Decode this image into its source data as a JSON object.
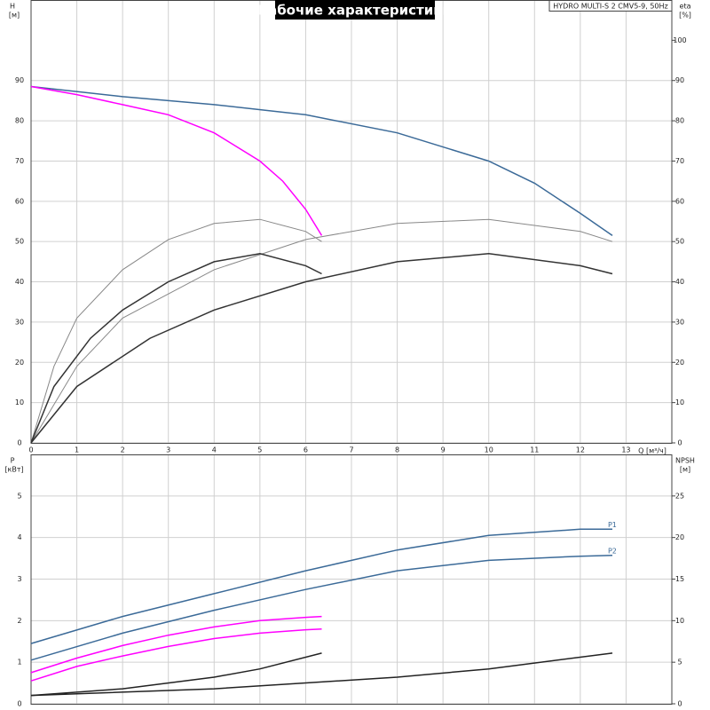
{
  "chart_data": [
    {
      "type": "line",
      "title": "Рабочие характеристики",
      "model": "HYDRO MULTI-S 2 CMV5-9, 50Hz",
      "x_label": "Q [м³/ч]",
      "y_label": "H",
      "y_unit": "[м]",
      "y2_label": "eta",
      "y2_unit": "[%]",
      "xlim": [
        0,
        14
      ],
      "xticks": [
        0,
        1,
        2,
        3,
        4,
        5,
        6,
        7,
        8,
        9,
        10,
        11,
        12,
        13
      ],
      "ylim": [
        0,
        110
      ],
      "yticks": [
        0,
        10,
        20,
        30,
        40,
        50,
        60,
        70,
        80,
        90
      ],
      "y2lim": [
        0,
        110
      ],
      "y2ticks": [
        0,
        10,
        20,
        30,
        40,
        50,
        60,
        70,
        80,
        90,
        100
      ],
      "grid": true,
      "series": [
        {
          "color": "#3b6a98",
          "x": [
            0,
            2,
            4,
            6,
            8,
            10,
            11,
            12,
            12.7
          ],
          "values": [
            88.5,
            86,
            84,
            81.5,
            77,
            70,
            64.5,
            57,
            51.5
          ]
        },
        {
          "color": "#ff00ff",
          "x": [
            0,
            1,
            2,
            3,
            4,
            5,
            5.5,
            6,
            6.35
          ],
          "values": [
            88.5,
            86.5,
            84,
            81.5,
            77,
            70,
            65,
            58,
            51.5
          ]
        },
        {
          "color": "#888888",
          "axis": "y2",
          "x": [
            0,
            0.5,
            1,
            2,
            3,
            4,
            5,
            6,
            6.35
          ],
          "values": [
            0,
            19,
            31,
            43,
            50.5,
            54.5,
            55.5,
            52.5,
            50
          ]
        },
        {
          "color": "#888888",
          "axis": "y2",
          "x": [
            0,
            1,
            2,
            4,
            6,
            8,
            10,
            12,
            12.7
          ],
          "values": [
            0,
            19,
            31,
            43,
            50.5,
            54.5,
            55.5,
            52.5,
            50
          ]
        },
        {
          "color": "#333333",
          "axis": "y2",
          "x": [
            0,
            0.5,
            1.3,
            2,
            3,
            4,
            5,
            6,
            6.35
          ],
          "values": [
            0,
            14,
            26,
            33,
            40,
            45,
            47,
            44,
            42
          ]
        },
        {
          "color": "#333333",
          "axis": "y2",
          "x": [
            0,
            1,
            2.6,
            4,
            6,
            8,
            10,
            12,
            12.7
          ],
          "values": [
            0,
            14,
            26,
            33,
            40,
            45,
            47,
            44,
            42
          ]
        }
      ]
    },
    {
      "type": "line",
      "y_label": "P",
      "y_unit": "[кВт]",
      "y2_label": "NPSH",
      "y2_unit": "[м]",
      "xlim": [
        0,
        14
      ],
      "xticks": [
        0,
        1,
        2,
        3,
        4,
        5,
        6,
        7,
        8,
        9,
        10,
        11,
        12,
        13
      ],
      "ylim": [
        0,
        6
      ],
      "yticks": [
        0,
        1,
        2,
        3,
        4,
        5
      ],
      "y2lim": [
        0,
        30
      ],
      "y2ticks": [
        0,
        5,
        10,
        15,
        20,
        25
      ],
      "grid": true,
      "series": [
        {
          "name": "P1",
          "color": "#3b6a98",
          "x": [
            0,
            2,
            4,
            6,
            8,
            10,
            12,
            12.7
          ],
          "values": [
            1.45,
            2.1,
            2.65,
            3.2,
            3.7,
            4.05,
            4.2,
            4.2
          ]
        },
        {
          "name": "P2",
          "color": "#3b6a98",
          "x": [
            0,
            2,
            4,
            6,
            8,
            10,
            12,
            12.7
          ],
          "values": [
            1.05,
            1.7,
            2.25,
            2.75,
            3.2,
            3.45,
            3.55,
            3.57
          ]
        },
        {
          "color": "#ff00ff",
          "x": [
            0,
            1,
            2,
            3,
            4,
            5,
            6,
            6.35
          ],
          "values": [
            0.75,
            1.1,
            1.4,
            1.65,
            1.85,
            2.0,
            2.08,
            2.1
          ]
        },
        {
          "color": "#ff00ff",
          "x": [
            0,
            1,
            2,
            3,
            4,
            5,
            6,
            6.35
          ],
          "values": [
            0.55,
            0.9,
            1.15,
            1.38,
            1.57,
            1.7,
            1.78,
            1.8
          ]
        },
        {
          "color": "#222222",
          "axis": "y2",
          "x": [
            0,
            2,
            4,
            5,
            6.35
          ],
          "values": [
            1,
            1.8,
            3.2,
            4.2,
            6.1
          ]
        },
        {
          "color": "#222222",
          "axis": "y2",
          "x": [
            0,
            4,
            8,
            10,
            12.7
          ],
          "values": [
            1,
            1.8,
            3.2,
            4.2,
            6.1
          ]
        }
      ]
    }
  ]
}
